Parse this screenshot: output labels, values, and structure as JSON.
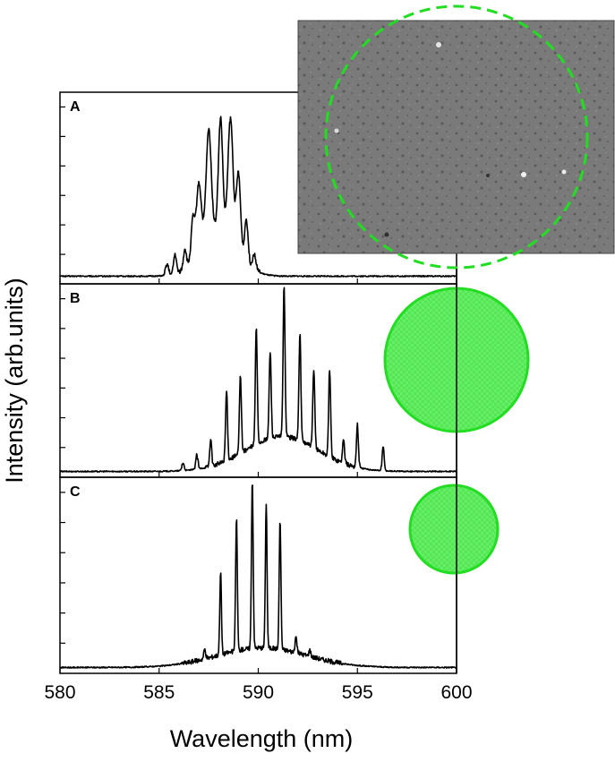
{
  "chart_data": {
    "type": "line",
    "xlabel": "Wavelength (nm)",
    "ylabel": "Intensity (arb.units)",
    "xlim": [
      580,
      600
    ],
    "x_ticks": [
      580,
      585,
      590,
      595,
      600
    ],
    "y_ticks_per_panel": 6,
    "colors": {
      "line": "#000000",
      "circle": "#22dd22",
      "circle_fill": "#55ee55"
    },
    "panels": [
      {
        "label": "A",
        "ylim": [
          0,
          1
        ],
        "baseline": 0.04,
        "peaks": [
          {
            "c": 585.4,
            "h": 0.06,
            "w": 0.1
          },
          {
            "c": 585.8,
            "h": 0.1,
            "w": 0.1
          },
          {
            "c": 586.3,
            "h": 0.1,
            "w": 0.1
          },
          {
            "c": 586.7,
            "h": 0.2,
            "w": 0.12
          },
          {
            "c": 587.0,
            "h": 0.35,
            "w": 0.18
          },
          {
            "c": 587.5,
            "h": 0.55,
            "w": 0.18
          },
          {
            "c": 588.1,
            "h": 0.58,
            "w": 0.15
          },
          {
            "c": 588.6,
            "h": 0.62,
            "w": 0.18
          },
          {
            "c": 589.0,
            "h": 0.4,
            "w": 0.15
          },
          {
            "c": 589.4,
            "h": 0.22,
            "w": 0.12
          },
          {
            "c": 589.8,
            "h": 0.08,
            "w": 0.12
          }
        ],
        "envelope": {
          "c": 588.0,
          "h": 0.25,
          "w": 1.3
        }
      },
      {
        "label": "B",
        "ylim": [
          0,
          1
        ],
        "baseline": 0.03,
        "peaks": [
          {
            "c": 586.2,
            "h": 0.04,
            "w": 0.08
          },
          {
            "c": 586.9,
            "h": 0.07,
            "w": 0.08
          },
          {
            "c": 587.6,
            "h": 0.14,
            "w": 0.07
          },
          {
            "c": 588.4,
            "h": 0.36,
            "w": 0.07
          },
          {
            "c": 589.1,
            "h": 0.4,
            "w": 0.07
          },
          {
            "c": 589.9,
            "h": 0.6,
            "w": 0.07
          },
          {
            "c": 590.6,
            "h": 0.45,
            "w": 0.07
          },
          {
            "c": 591.3,
            "h": 0.78,
            "w": 0.07
          },
          {
            "c": 592.1,
            "h": 0.55,
            "w": 0.07
          },
          {
            "c": 592.8,
            "h": 0.4,
            "w": 0.07
          },
          {
            "c": 593.6,
            "h": 0.45,
            "w": 0.07
          },
          {
            "c": 594.3,
            "h": 0.12,
            "w": 0.07
          },
          {
            "c": 595.0,
            "h": 0.22,
            "w": 0.07
          },
          {
            "c": 596.3,
            "h": 0.12,
            "w": 0.07
          }
        ],
        "envelope": {
          "c": 591.2,
          "h": 0.18,
          "w": 2.6
        }
      },
      {
        "label": "C",
        "ylim": [
          0,
          1
        ],
        "baseline": 0.03,
        "peaks": [
          {
            "c": 587.3,
            "h": 0.05,
            "w": 0.07
          },
          {
            "c": 588.1,
            "h": 0.42,
            "w": 0.06
          },
          {
            "c": 588.9,
            "h": 0.68,
            "w": 0.06
          },
          {
            "c": 589.7,
            "h": 0.86,
            "w": 0.06
          },
          {
            "c": 590.4,
            "h": 0.74,
            "w": 0.06
          },
          {
            "c": 591.1,
            "h": 0.66,
            "w": 0.06
          },
          {
            "c": 591.9,
            "h": 0.08,
            "w": 0.07
          },
          {
            "c": 592.6,
            "h": 0.03,
            "w": 0.07
          }
        ],
        "envelope": {
          "c": 590.2,
          "h": 0.1,
          "w": 3.2
        }
      }
    ]
  }
}
